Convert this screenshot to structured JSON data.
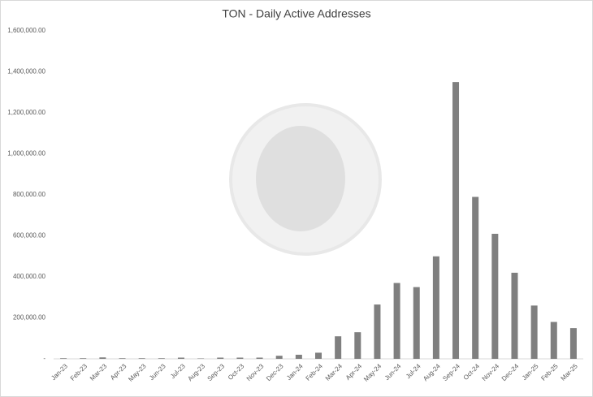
{
  "chart_data": {
    "type": "bar",
    "title": "TON - Daily Active Addresses",
    "categories": [
      "Jan-23",
      "Feb-23",
      "Mar-23",
      "Apr-23",
      "May-23",
      "Jun-23",
      "Jul-23",
      "Aug-23",
      "Sep-23",
      "Oct-23",
      "Nov-23",
      "Dec-23",
      "Jan-24",
      "Feb-24",
      "Mar-24",
      "Apr-24",
      "May-24",
      "Jun-24",
      "Jul-24",
      "Aug-24",
      "Sep-24",
      "Oct-24",
      "Nov-24",
      "Dec-24",
      "Jan-25",
      "Feb-25",
      "Mar-25"
    ],
    "values": [
      3000,
      3000,
      7000,
      3000,
      3000,
      3000,
      6000,
      2000,
      6000,
      6000,
      6000,
      15000,
      20000,
      30000,
      110000,
      130000,
      265000,
      370000,
      350000,
      500000,
      1350000,
      790000,
      610000,
      420000,
      260000,
      180000,
      150000
    ],
    "color": "#7f7f7f",
    "ylim": [
      0,
      1600000
    ],
    "yticks": [
      {
        "value": 0,
        "label": "-"
      },
      {
        "value": 200000,
        "label": "200,000.00"
      },
      {
        "value": 400000,
        "label": "400,000.00"
      },
      {
        "value": 600000,
        "label": "600,000.00"
      },
      {
        "value": 800000,
        "label": "800,000.00"
      },
      {
        "value": 1000000,
        "label": "1,000,000.00"
      },
      {
        "value": 1200000,
        "label": "1,200,000.00"
      },
      {
        "value": 1400000,
        "label": "1,400,000.00"
      },
      {
        "value": 1600000,
        "label": "1,600,000.00"
      }
    ],
    "grid": false
  }
}
